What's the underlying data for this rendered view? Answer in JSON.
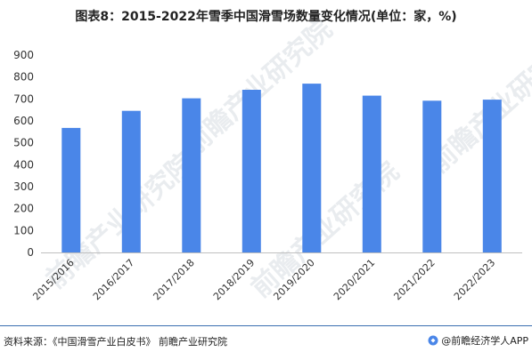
{
  "figure": {
    "title": "图表8：2015-2022年雪季中国滑雪场数量变化情况(单位：家，%)",
    "source": "资料来源：《中国滑雪产业白皮书》 前瞻产业研究院",
    "brand": "@前瞻经济学人APP",
    "watermark_text": "前瞻产业研究院"
  },
  "chart_data": {
    "type": "bar",
    "title": "图表8：2015-2022年雪季中国滑雪场数量变化情况(单位：家，%)",
    "xlabel": "",
    "ylabel": "",
    "categories": [
      "2015/2016",
      "2016/2017",
      "2017/2018",
      "2018/2019",
      "2019/2020",
      "2020/2021",
      "2021/2022",
      "2022/2023"
    ],
    "series": [
      {
        "values": [
          568,
          646,
          703,
          742,
          770,
          715,
          692,
          697
        ],
        "color": "#4a86e8"
      }
    ],
    "ylim": [
      0,
      900
    ],
    "yticks": [
      0,
      100,
      200,
      300,
      400,
      500,
      600,
      700,
      800,
      900
    ],
    "grid": false,
    "legend": "none"
  }
}
